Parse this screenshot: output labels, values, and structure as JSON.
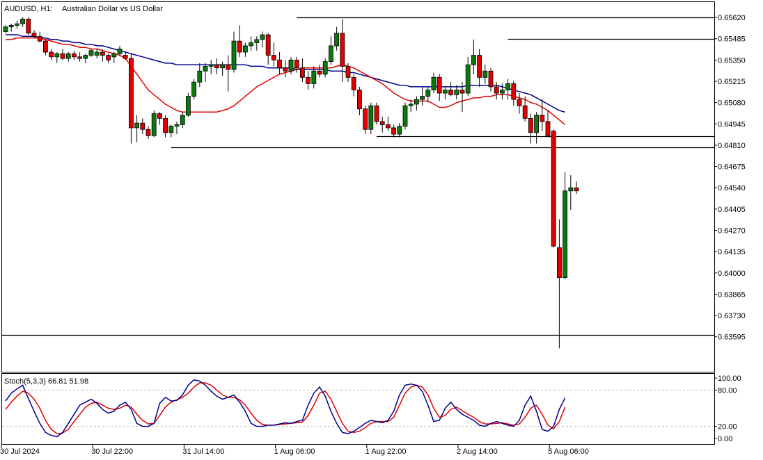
{
  "chart_data": {
    "type": "candlestick",
    "title": {
      "symbol": "AUDUSD, H1:",
      "description": "Australian Dollar vs US Dollar"
    },
    "price_axis": {
      "ylim": [
        0.6351,
        0.6566
      ],
      "ticks": [
        "0.65620",
        "0.65485",
        "0.65350",
        "0.65215",
        "0.65080",
        "0.64945",
        "0.64810",
        "0.64675",
        "0.64540",
        "0.64405",
        "0.64270",
        "0.64135",
        "0.64000",
        "0.63865",
        "0.63730",
        "0.63595"
      ]
    },
    "time_axis": {
      "labels": [
        {
          "index": 0,
          "text": "30 Jul 2024"
        },
        {
          "index": 16,
          "text": "30 Jul 22:00"
        },
        {
          "index": 32,
          "text": "31 Jul 14:00"
        },
        {
          "index": 48,
          "text": "1 Aug 06:00"
        },
        {
          "index": 64,
          "text": "1 Aug 22:00"
        },
        {
          "index": 80,
          "text": "2 Aug 14:00"
        },
        {
          "index": 96,
          "text": "5 Aug 06:00"
        }
      ]
    },
    "candles": [
      [
        0.6553,
        0.6557,
        0.6552,
        0.6556
      ],
      [
        0.6556,
        0.6558,
        0.6553,
        0.6557
      ],
      [
        0.6557,
        0.656,
        0.6555,
        0.6558
      ],
      [
        0.6558,
        0.6562,
        0.6556,
        0.6561
      ],
      [
        0.6561,
        0.6562,
        0.6551,
        0.6552
      ],
      [
        0.6552,
        0.6554,
        0.6549,
        0.655
      ],
      [
        0.655,
        0.6553,
        0.6546,
        0.6547
      ],
      [
        0.6547,
        0.6548,
        0.6538,
        0.654
      ],
      [
        0.654,
        0.6542,
        0.6535,
        0.6537
      ],
      [
        0.6537,
        0.654,
        0.6533,
        0.6539
      ],
      [
        0.6539,
        0.6542,
        0.6535,
        0.6536
      ],
      [
        0.6536,
        0.654,
        0.6534,
        0.6539
      ],
      [
        0.6539,
        0.6541,
        0.6535,
        0.6537
      ],
      [
        0.6537,
        0.654,
        0.6534,
        0.6536
      ],
      [
        0.6536,
        0.6539,
        0.6533,
        0.6538
      ],
      [
        0.6538,
        0.6542,
        0.6537,
        0.6541
      ],
      [
        0.6538,
        0.6542,
        0.6536,
        0.654
      ],
      [
        0.654,
        0.6542,
        0.6534,
        0.6538
      ],
      [
        0.6538,
        0.6539,
        0.6533,
        0.6535
      ],
      [
        0.6537,
        0.654,
        0.6533,
        0.6539
      ],
      [
        0.6539,
        0.6544,
        0.6538,
        0.6542
      ],
      [
        0.6538,
        0.654,
        0.6535,
        0.6536
      ],
      [
        0.6536,
        0.6539,
        0.6482,
        0.6492
      ],
      [
        0.6492,
        0.65,
        0.6483,
        0.6495
      ],
      [
        0.6495,
        0.6498,
        0.6488,
        0.6491
      ],
      [
        0.6491,
        0.6493,
        0.6485,
        0.6487
      ],
      [
        0.6487,
        0.6503,
        0.6486,
        0.6501
      ],
      [
        0.6501,
        0.6502,
        0.6494,
        0.6498
      ],
      [
        0.6498,
        0.65,
        0.6486,
        0.6489
      ],
      [
        0.6489,
        0.6494,
        0.6486,
        0.6493
      ],
      [
        0.6493,
        0.6496,
        0.6488,
        0.6494
      ],
      [
        0.6494,
        0.6502,
        0.6492,
        0.65
      ],
      [
        0.65,
        0.6514,
        0.6499,
        0.6512
      ],
      [
        0.6512,
        0.6523,
        0.651,
        0.6521
      ],
      [
        0.6521,
        0.6533,
        0.6518,
        0.6528
      ],
      [
        0.6528,
        0.6533,
        0.6521,
        0.6531
      ],
      [
        0.6531,
        0.6535,
        0.6526,
        0.6532
      ],
      [
        0.6532,
        0.6536,
        0.6526,
        0.653
      ],
      [
        0.653,
        0.6534,
        0.6525,
        0.6532
      ],
      [
        0.6532,
        0.6538,
        0.6515,
        0.6529
      ],
      [
        0.6529,
        0.6553,
        0.6527,
        0.6547
      ],
      [
        0.6547,
        0.6557,
        0.6537,
        0.654
      ],
      [
        0.654,
        0.6546,
        0.6537,
        0.6544
      ],
      [
        0.6544,
        0.655,
        0.6541,
        0.6546
      ],
      [
        0.6546,
        0.655,
        0.6541,
        0.6548
      ],
      [
        0.6548,
        0.6553,
        0.6543,
        0.6551
      ],
      [
        0.6551,
        0.6552,
        0.6532,
        0.6538
      ],
      [
        0.6538,
        0.6546,
        0.6531,
        0.6535
      ],
      [
        0.6535,
        0.654,
        0.6526,
        0.653
      ],
      [
        0.653,
        0.6535,
        0.6524,
        0.6528
      ],
      [
        0.6528,
        0.6537,
        0.6526,
        0.6535
      ],
      [
        0.6535,
        0.6537,
        0.6527,
        0.653
      ],
      [
        0.653,
        0.6536,
        0.6521,
        0.6524
      ],
      [
        0.6524,
        0.6528,
        0.6516,
        0.652
      ],
      [
        0.652,
        0.6531,
        0.6517,
        0.6528
      ],
      [
        0.6528,
        0.6532,
        0.6524,
        0.6526
      ],
      [
        0.6526,
        0.6536,
        0.6524,
        0.6534
      ],
      [
        0.6534,
        0.655,
        0.6532,
        0.6544
      ],
      [
        0.6544,
        0.6556,
        0.6541,
        0.6552
      ],
      [
        0.6552,
        0.6561,
        0.6521,
        0.6531
      ],
      [
        0.6531,
        0.6533,
        0.6521,
        0.6524
      ],
      [
        0.6524,
        0.6526,
        0.6512,
        0.6516
      ],
      [
        0.6516,
        0.6518,
        0.65,
        0.6504
      ],
      [
        0.6504,
        0.6506,
        0.6488,
        0.6491
      ],
      [
        0.6491,
        0.6508,
        0.6488,
        0.6506
      ],
      [
        0.6506,
        0.6508,
        0.6494,
        0.6496
      ],
      [
        0.6496,
        0.6499,
        0.6489,
        0.6494
      ],
      [
        0.6494,
        0.6499,
        0.649,
        0.6492
      ],
      [
        0.6492,
        0.6494,
        0.6486,
        0.6488
      ],
      [
        0.6488,
        0.6495,
        0.6486,
        0.6493
      ],
      [
        0.6493,
        0.6508,
        0.6491,
        0.6506
      ],
      [
        0.6506,
        0.651,
        0.6502,
        0.6507
      ],
      [
        0.6507,
        0.6512,
        0.6503,
        0.651
      ],
      [
        0.651,
        0.6518,
        0.6506,
        0.6512
      ],
      [
        0.6512,
        0.6518,
        0.6508,
        0.6516
      ],
      [
        0.6516,
        0.6527,
        0.6514,
        0.6524
      ],
      [
        0.6524,
        0.6526,
        0.6509,
        0.6514
      ],
      [
        0.6514,
        0.6518,
        0.651,
        0.6516
      ],
      [
        0.6516,
        0.6521,
        0.6512,
        0.6513
      ],
      [
        0.6513,
        0.6519,
        0.651,
        0.6516
      ],
      [
        0.6516,
        0.6521,
        0.6502,
        0.6514
      ],
      [
        0.6514,
        0.6537,
        0.6512,
        0.6532
      ],
      [
        0.6532,
        0.6548,
        0.6526,
        0.6538
      ],
      [
        0.6538,
        0.6542,
        0.6518,
        0.6524
      ],
      [
        0.6524,
        0.6532,
        0.652,
        0.6528
      ],
      [
        0.6528,
        0.653,
        0.6515,
        0.6518
      ],
      [
        0.6518,
        0.6521,
        0.651,
        0.6514
      ],
      [
        0.6514,
        0.652,
        0.651,
        0.6516
      ],
      [
        0.6516,
        0.6523,
        0.651,
        0.652
      ],
      [
        0.652,
        0.6522,
        0.6506,
        0.651
      ],
      [
        0.651,
        0.6514,
        0.6501,
        0.6506
      ],
      [
        0.6506,
        0.6512,
        0.6496,
        0.6498
      ],
      [
        0.6498,
        0.6501,
        0.6482,
        0.6489
      ],
      [
        0.6489,
        0.6502,
        0.6482,
        0.65
      ],
      [
        0.65,
        0.651,
        0.649,
        0.6496
      ],
      [
        0.6496,
        0.6503,
        0.6486,
        0.6487
      ],
      [
        0.649,
        0.6491,
        0.6416,
        0.6417
      ],
      [
        0.6416,
        0.6434,
        0.6392,
        0.6397
      ],
      [
        0.6397,
        0.6464,
        0.6396,
        0.6452
      ],
      [
        0.6452,
        0.6462,
        0.644,
        0.6454
      ],
      [
        0.6454,
        0.6458,
        0.645,
        0.6452
      ]
    ],
    "extra_wick_low": {
      "index": 97,
      "value": 0.63522
    },
    "moving_averages": [
      {
        "name": "slow",
        "color": "#00008b",
        "values": [
          0.6551,
          0.6551,
          0.6551,
          0.655,
          0.655,
          0.655,
          0.6549,
          0.6549,
          0.6548,
          0.6548,
          0.6547,
          0.6547,
          0.6546,
          0.6546,
          0.6545,
          0.6545,
          0.6544,
          0.6544,
          0.6543,
          0.6542,
          0.6541,
          0.654,
          0.6539,
          0.6538,
          0.6537,
          0.6536,
          0.6535,
          0.6534,
          0.6533,
          0.6533,
          0.6532,
          0.6532,
          0.6532,
          0.6532,
          0.6532,
          0.6532,
          0.6532,
          0.6532,
          0.6532,
          0.6532,
          0.6532,
          0.6532,
          0.6532,
          0.6531,
          0.6531,
          0.6531,
          0.653,
          0.653,
          0.653,
          0.653,
          0.653,
          0.6529,
          0.6529,
          0.6529,
          0.6529,
          0.6529,
          0.6529,
          0.6528,
          0.6528,
          0.6528,
          0.6527,
          0.6527,
          0.6526,
          0.6525,
          0.6524,
          0.6523,
          0.6522,
          0.6521,
          0.652,
          0.6519,
          0.6519,
          0.6518,
          0.6518,
          0.6518,
          0.6518,
          0.6518,
          0.6518,
          0.6518,
          0.6518,
          0.6518,
          0.6518,
          0.6519,
          0.6519,
          0.6519,
          0.6519,
          0.6519,
          0.6519,
          0.6518,
          0.6517,
          0.6516,
          0.6515,
          0.6514,
          0.6513,
          0.6511,
          0.6509,
          0.6507,
          0.6505,
          0.6503,
          0.6502
        ]
      },
      {
        "name": "fast",
        "color": "#e00000",
        "values": [
          0.6548,
          0.6548,
          0.6549,
          0.6549,
          0.6549,
          0.6549,
          0.6549,
          0.6548,
          0.6547,
          0.6546,
          0.6545,
          0.6545,
          0.6544,
          0.6543,
          0.6543,
          0.6542,
          0.6542,
          0.6541,
          0.654,
          0.6539,
          0.6538,
          0.6536,
          0.6531,
          0.6526,
          0.6521,
          0.6516,
          0.6513,
          0.651,
          0.6507,
          0.6505,
          0.6503,
          0.6502,
          0.6502,
          0.6502,
          0.6502,
          0.6502,
          0.6502,
          0.6502,
          0.6503,
          0.6504,
          0.6506,
          0.6509,
          0.6512,
          0.6515,
          0.6518,
          0.652,
          0.6522,
          0.6524,
          0.6526,
          0.6527,
          0.6528,
          0.6529,
          0.653,
          0.653,
          0.653,
          0.653,
          0.653,
          0.653,
          0.6531,
          0.6532,
          0.6531,
          0.653,
          0.6528,
          0.6526,
          0.6524,
          0.6522,
          0.652,
          0.6517,
          0.6514,
          0.6512,
          0.651,
          0.6509,
          0.6509,
          0.6509,
          0.6509,
          0.6507,
          0.6505,
          0.6505,
          0.6506,
          0.6508,
          0.6509,
          0.651,
          0.6511,
          0.6511,
          0.6512,
          0.6512,
          0.6513,
          0.6513,
          0.6513,
          0.6512,
          0.6511,
          0.651,
          0.6508,
          0.6507,
          0.6505,
          0.6503,
          0.65,
          0.6497,
          0.6494
        ]
      }
    ],
    "support_resistance_lines": [
      {
        "price": 0.6562,
        "start_index": 51
      },
      {
        "price": 0.65485,
        "start_index": 88
      },
      {
        "price": 0.64865,
        "start_index": 65
      },
      {
        "price": 0.64795,
        "start_index": 29
      },
      {
        "price": 0.63607,
        "start_index": 0
      }
    ],
    "stochastic": {
      "label": "Stoch(5,3,3) 66.81 51.98",
      "ylim": [
        0,
        100
      ],
      "ticks": [
        "100.00",
        "80.00",
        "20.00",
        "0.00"
      ],
      "levels": [
        80,
        20
      ],
      "k_color": "#00008b",
      "d_color": "#e00000",
      "k": [
        62,
        75,
        82,
        88,
        66,
        45,
        25,
        10,
        5,
        3,
        10,
        25,
        40,
        55,
        60,
        65,
        58,
        48,
        42,
        45,
        55,
        60,
        48,
        25,
        20,
        20,
        25,
        58,
        68,
        62,
        63,
        72,
        88,
        97,
        95,
        88,
        78,
        70,
        65,
        68,
        72,
        60,
        45,
        25,
        20,
        20,
        22,
        22,
        24,
        26,
        25,
        28,
        30,
        55,
        75,
        85,
        70,
        45,
        25,
        10,
        8,
        12,
        18,
        25,
        30,
        28,
        26,
        30,
        45,
        72,
        88,
        90,
        88,
        78,
        55,
        28,
        30,
        50,
        60,
        48,
        40,
        35,
        30,
        22,
        20,
        25,
        28,
        25,
        22,
        20,
        30,
        55,
        70,
        45,
        15,
        12,
        20,
        48,
        67
      ],
      "d": [
        48,
        60,
        70,
        78,
        75,
        65,
        50,
        30,
        15,
        8,
        9,
        15,
        28,
        40,
        52,
        58,
        60,
        55,
        50,
        48,
        50,
        55,
        52,
        40,
        30,
        24,
        25,
        38,
        52,
        60,
        64,
        68,
        75,
        85,
        92,
        92,
        88,
        80,
        72,
        68,
        68,
        64,
        55,
        42,
        30,
        23,
        22,
        22,
        23,
        24,
        25,
        26,
        27,
        38,
        55,
        75,
        78,
        65,
        45,
        25,
        12,
        10,
        12,
        18,
        25,
        28,
        28,
        28,
        35,
        55,
        75,
        85,
        88,
        85,
        72,
        50,
        35,
        38,
        48,
        52,
        46,
        40,
        35,
        28,
        24,
        24,
        25,
        26,
        24,
        22,
        24,
        35,
        50,
        55,
        40,
        22,
        16,
        28,
        52
      ]
    }
  }
}
